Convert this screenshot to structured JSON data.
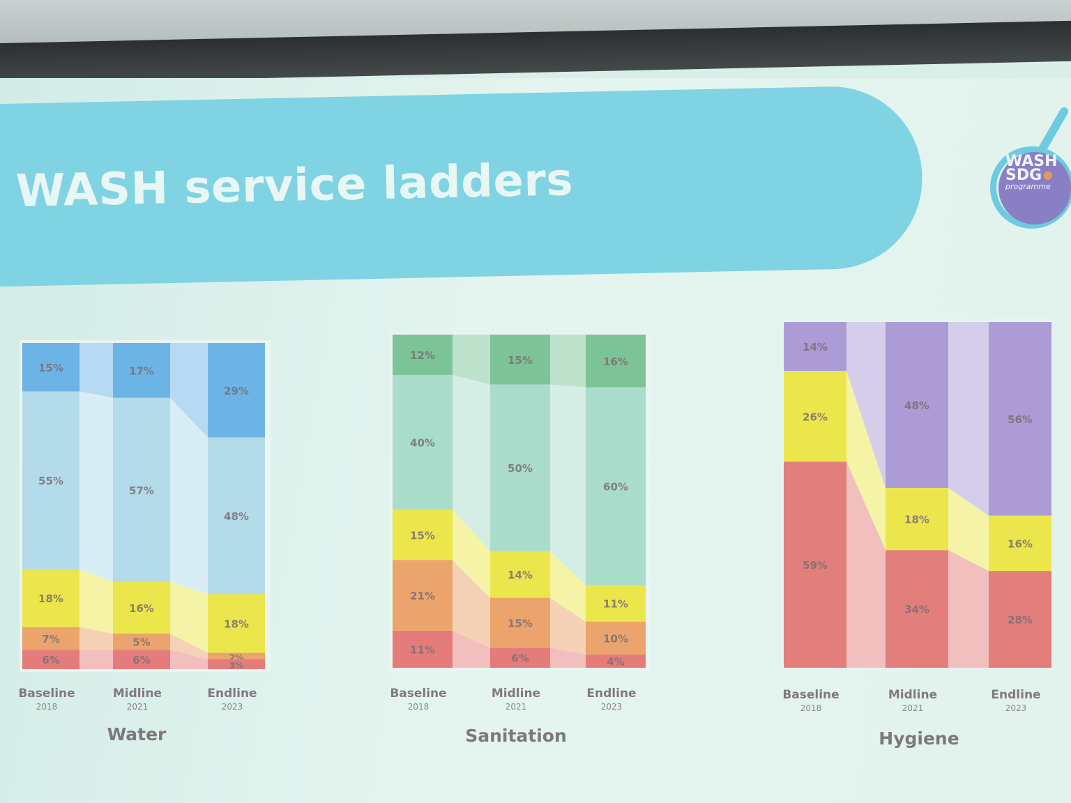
{
  "slide": {
    "title": "WASH service ladders",
    "logo": {
      "line1": "WASH",
      "line2": "SDG",
      "line3": "programme"
    }
  },
  "chart_data": [
    {
      "type": "bar",
      "stacked": true,
      "title": "Water",
      "categories": [
        "Baseline",
        "Midline",
        "Endline"
      ],
      "category_years": [
        "2018",
        "2021",
        "2023"
      ],
      "ylim": [
        0,
        100
      ],
      "levels_top_to_bottom_colors": [
        "#6cb4e6",
        "#b3dbe9",
        "#ebe64b",
        "#eba46c",
        "#e47c7c"
      ],
      "stacks_top_to_bottom": [
        [
          15,
          55,
          18,
          7,
          6
        ],
        [
          17,
          57,
          16,
          5,
          6
        ],
        [
          29,
          48,
          18,
          2,
          3
        ]
      ]
    },
    {
      "type": "bar",
      "stacked": true,
      "title": "Sanitation",
      "categories": [
        "Baseline",
        "Midline",
        "Endline"
      ],
      "category_years": [
        "2018",
        "2021",
        "2023"
      ],
      "ylim": [
        0,
        100
      ],
      "levels_top_to_bottom_colors": [
        "#7cc497",
        "#aadccb",
        "#ebe64b",
        "#eba46c",
        "#e47c7c"
      ],
      "stacks_top_to_bottom": [
        [
          12,
          40,
          15,
          21,
          11
        ],
        [
          15,
          50,
          14,
          15,
          6
        ],
        [
          16,
          60,
          11,
          10,
          4
        ]
      ]
    },
    {
      "type": "bar",
      "stacked": true,
      "title": "Hygiene",
      "categories": [
        "Baseline",
        "Midline",
        "Endline"
      ],
      "category_years": [
        "2018",
        "2021",
        "2023"
      ],
      "ylim": [
        0,
        100
      ],
      "levels_top_to_bottom_colors": [
        "#ab9cd6",
        "#ebe64b",
        "#e27e7b"
      ],
      "stacks_top_to_bottom": [
        [
          14,
          26,
          59
        ],
        [
          48,
          18,
          34
        ],
        [
          56,
          16,
          28
        ]
      ]
    }
  ]
}
